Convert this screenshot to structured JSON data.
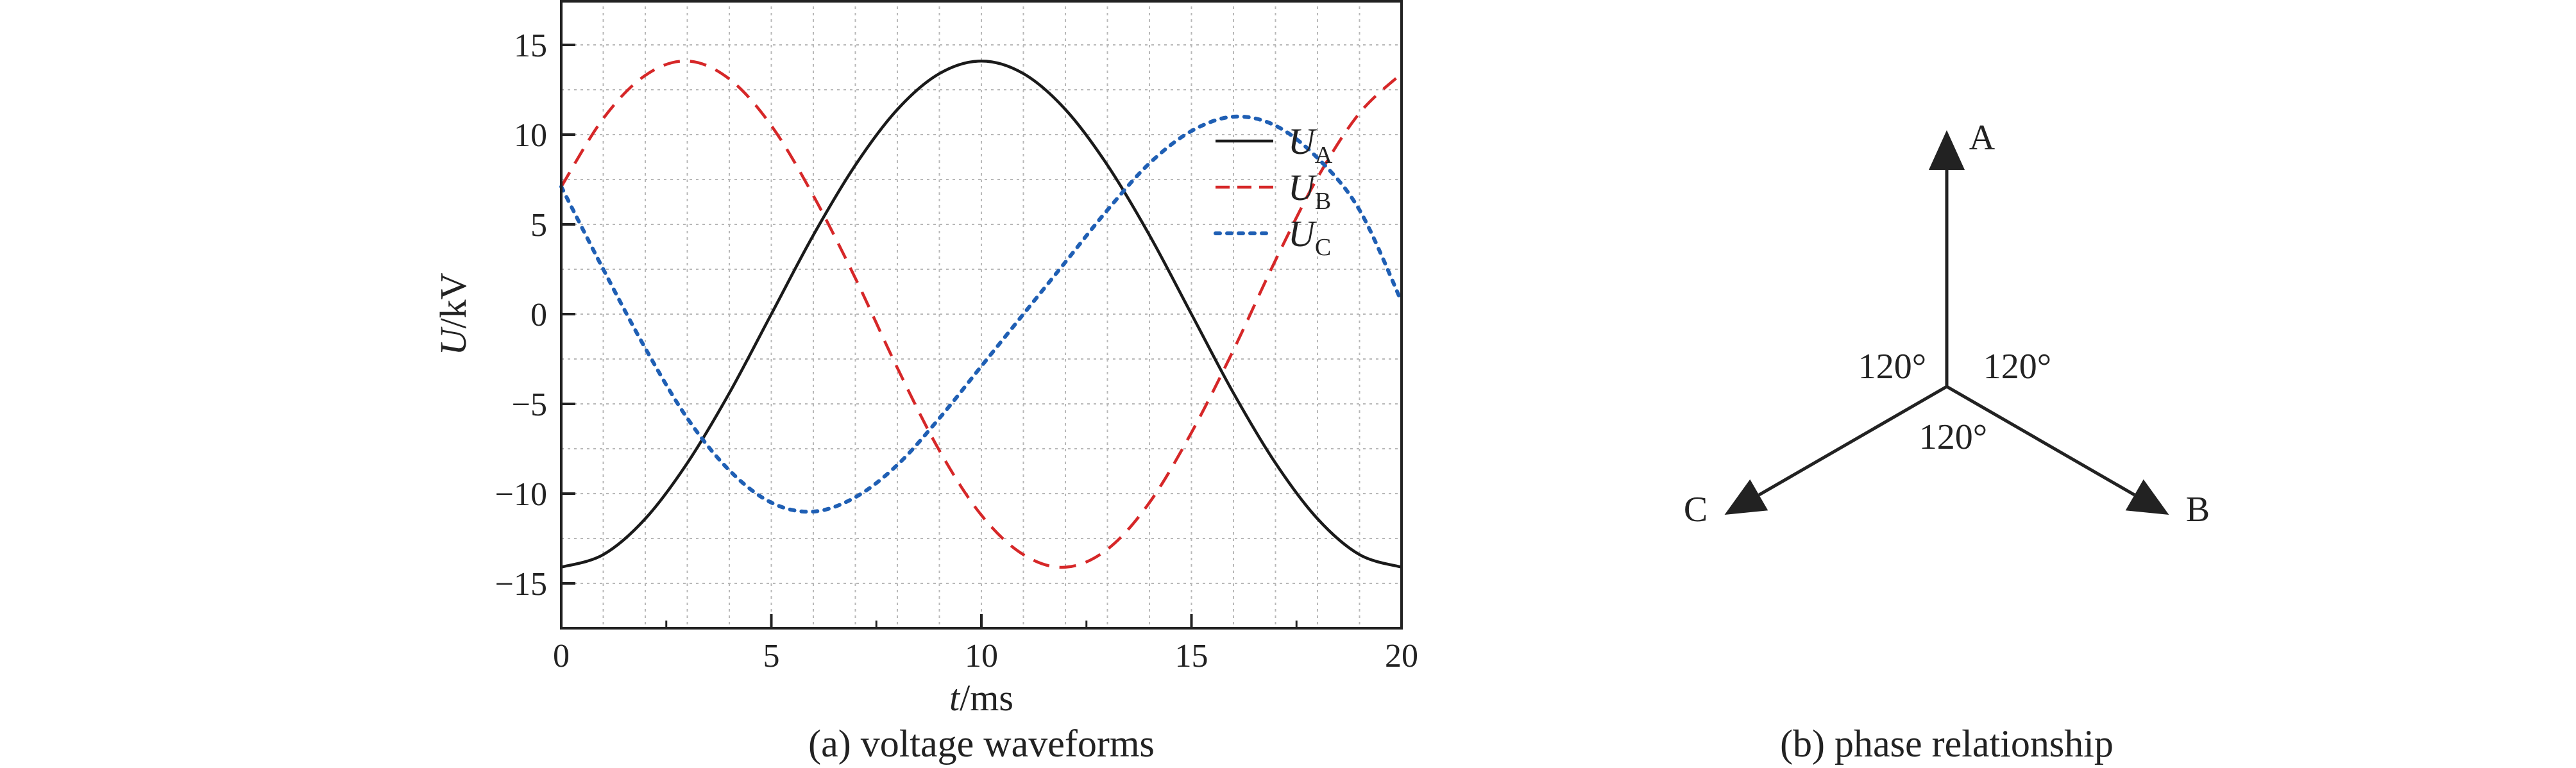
{
  "chart_data": [
    {
      "type": "line",
      "caption": "(a) voltage waveforms",
      "xlabel_italic": "t",
      "xlabel_unit": "/ms",
      "ylabel_italic": "U",
      "ylabel_unit": "/kV",
      "xlim": [
        0,
        20
      ],
      "ylim": [
        -17.5,
        17.5
      ],
      "xticks": [
        0,
        5,
        10,
        15,
        20
      ],
      "xtick_labels": [
        "0",
        "5",
        "10",
        "15",
        "20"
      ],
      "yticks": [
        15,
        10,
        5,
        0,
        -5,
        -10,
        -15
      ],
      "ytick_labels": [
        "15",
        "10",
        "5",
        "0",
        "−5",
        "−10",
        "−15"
      ],
      "grid": true,
      "legend_position": "top-right",
      "x": [
        0,
        1,
        2,
        3,
        4,
        5,
        6,
        7,
        8,
        9,
        10,
        11,
        12,
        13,
        14,
        15,
        16,
        17,
        18,
        19,
        20
      ],
      "series": [
        {
          "name": "U_A",
          "label_main": "U",
          "label_sub": "A",
          "color": "#1a1a1a",
          "style": "solid",
          "values": [
            -14.1,
            -13.4,
            -11.4,
            -8.3,
            -4.4,
            0,
            4.4,
            8.3,
            11.4,
            13.4,
            14.1,
            13.4,
            11.4,
            8.3,
            4.4,
            0,
            -4.4,
            -8.3,
            -11.4,
            -13.4,
            -14.1
          ]
        },
        {
          "name": "U_B",
          "label_main": "U",
          "label_sub": "B",
          "color": "#d62728",
          "style": "dashed",
          "values": [
            7.1,
            10.9,
            13.3,
            14.1,
            13.1,
            10.5,
            6.6,
            2.0,
            -3.0,
            -7.6,
            -11.2,
            -13.4,
            -14.1,
            -13.1,
            -10.5,
            -6.6,
            -2.0,
            3.0,
            7.6,
            11.2,
            13.4
          ]
        },
        {
          "name": "U_C",
          "label_main": "U",
          "label_sub": "C",
          "color": "#1f5fb4",
          "style": "dotted",
          "values": [
            7.1,
            2.5,
            -1.9,
            -5.8,
            -8.7,
            -10.5,
            -11.0,
            -10.2,
            -8.4,
            -5.8,
            -2.9,
            0,
            2.9,
            5.8,
            8.4,
            10.2,
            11.0,
            10.5,
            8.7,
            5.8,
            0.7
          ]
        }
      ]
    },
    {
      "type": "diagram",
      "caption": "(b) phase relationship",
      "phasors": [
        {
          "label": "A",
          "angle_deg": 90
        },
        {
          "label": "B",
          "angle_deg": -30
        },
        {
          "label": "C",
          "angle_deg": 210
        }
      ],
      "angle_labels": [
        "120°",
        "120°",
        "120°"
      ]
    }
  ]
}
